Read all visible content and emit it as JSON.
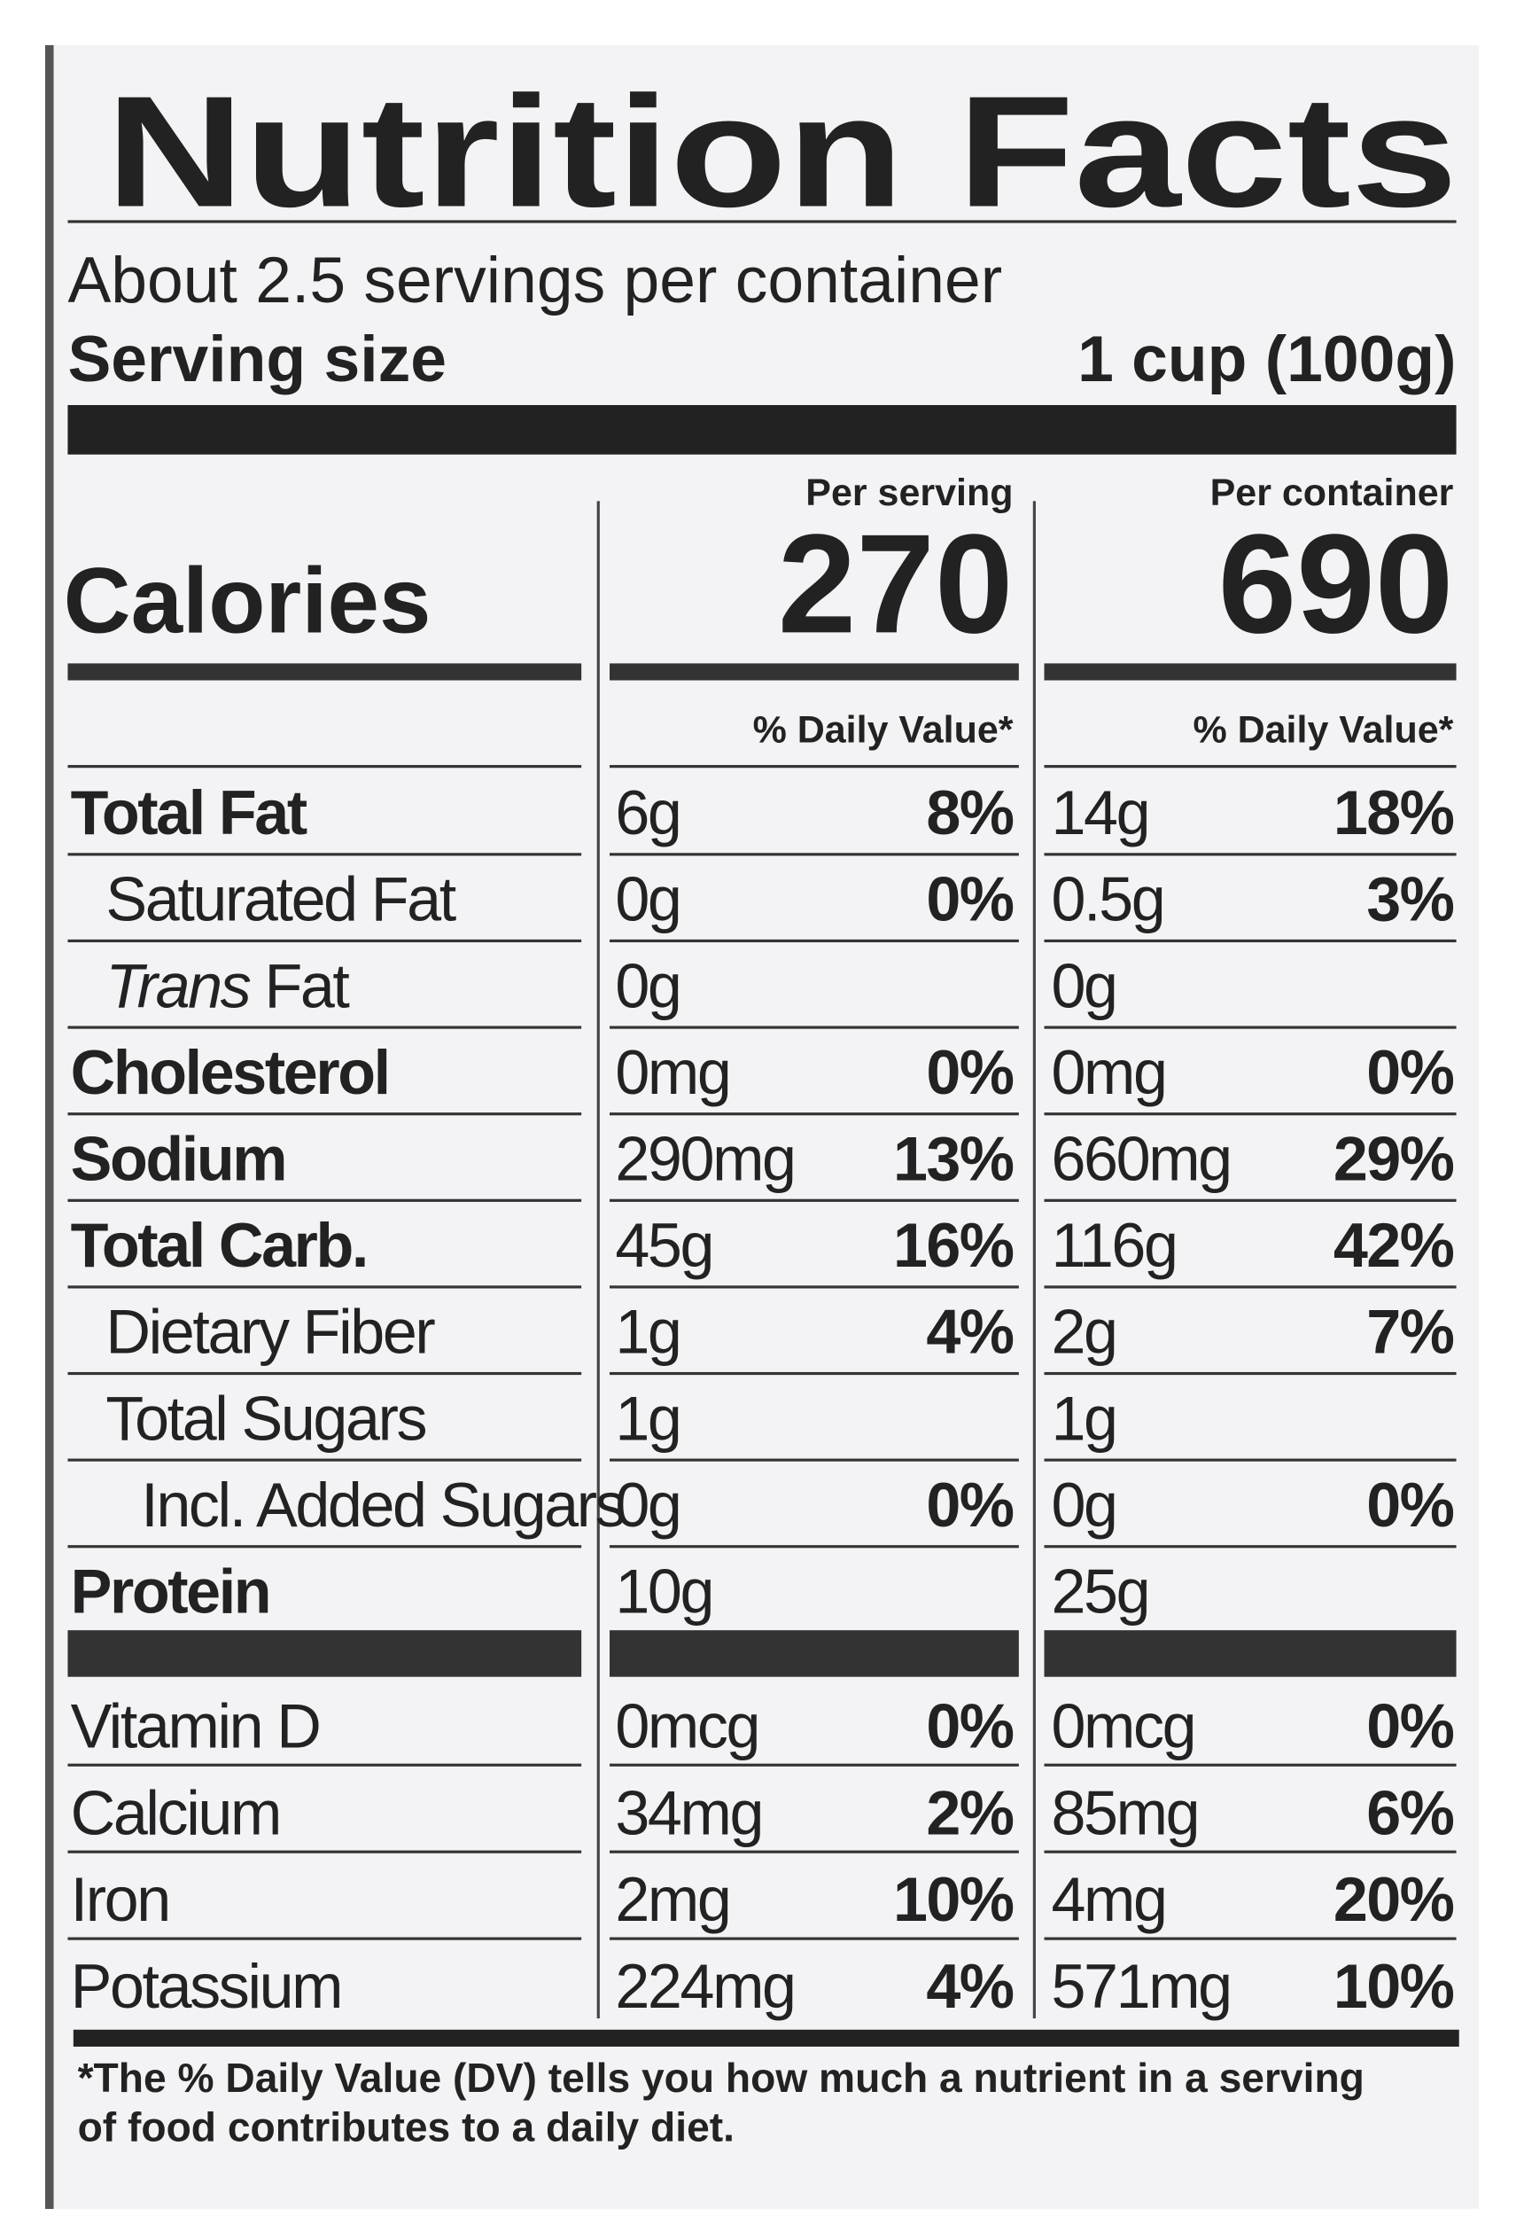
{
  "title": "Nutrition Facts",
  "servings": "About 2.5 servings per container",
  "serving_size": {
    "label": "Serving size",
    "value": "1 cup (100g)"
  },
  "calories_label": "Calories",
  "columns": [
    {
      "heading": "Per serving",
      "calories": "270",
      "dv_heading": "% Daily Value*"
    },
    {
      "heading": "Per container",
      "calories": "690",
      "dv_heading": "% Daily Value*"
    }
  ],
  "nutrients": [
    {
      "name": "Total Fat",
      "bold": true,
      "indent": 0,
      "values": [
        {
          "amount": "6g",
          "dv": "8%"
        },
        {
          "amount": "14g",
          "dv": "18%"
        }
      ]
    },
    {
      "name": "Saturated Fat",
      "bold": false,
      "indent": 1,
      "values": [
        {
          "amount": "0g",
          "dv": "0%"
        },
        {
          "amount": "0.5g",
          "dv": "3%"
        }
      ]
    },
    {
      "name_italic": "Trans",
      "name": "Fat",
      "bold": false,
      "indent": 1,
      "values": [
        {
          "amount": "0g"
        },
        {
          "amount": "0g"
        }
      ]
    },
    {
      "name": "Cholesterol",
      "bold": true,
      "indent": 0,
      "values": [
        {
          "amount": "0mg",
          "dv": "0%"
        },
        {
          "amount": "0mg",
          "dv": "0%"
        }
      ]
    },
    {
      "name": "Sodium",
      "bold": true,
      "indent": 0,
      "values": [
        {
          "amount": "290mg",
          "dv": "13%"
        },
        {
          "amount": "660mg",
          "dv": "29%"
        }
      ]
    },
    {
      "name": "Total Carb.",
      "bold": true,
      "indent": 0,
      "values": [
        {
          "amount": "45g",
          "dv": "16%"
        },
        {
          "amount": "116g",
          "dv": "42%"
        }
      ]
    },
    {
      "name": "Dietary Fiber",
      "bold": false,
      "indent": 1,
      "values": [
        {
          "amount": "1g",
          "dv": "4%"
        },
        {
          "amount": "2g",
          "dv": "7%"
        }
      ]
    },
    {
      "name": "Total Sugars",
      "bold": false,
      "indent": 1,
      "values": [
        {
          "amount": "1g"
        },
        {
          "amount": "1g"
        }
      ]
    },
    {
      "name": "Incl. Added Sugars",
      "bold": false,
      "indent": 2,
      "values": [
        {
          "amount": "0g",
          "dv": "0%"
        },
        {
          "amount": "0g",
          "dv": "0%"
        }
      ]
    },
    {
      "name": "Protein",
      "bold": true,
      "indent": 0,
      "values": [
        {
          "amount": "10g"
        },
        {
          "amount": "25g"
        }
      ]
    }
  ],
  "vitamins": [
    {
      "name": "Vitamin D",
      "values": [
        {
          "amount": "0mcg",
          "dv": "0%"
        },
        {
          "amount": "0mcg",
          "dv": "0%"
        }
      ]
    },
    {
      "name": "Calcium",
      "values": [
        {
          "amount": "34mg",
          "dv": "2%"
        },
        {
          "amount": "85mg",
          "dv": "6%"
        }
      ]
    },
    {
      "name": "Iron",
      "values": [
        {
          "amount": "2mg",
          "dv": "10%"
        },
        {
          "amount": "4mg",
          "dv": "20%"
        }
      ]
    },
    {
      "name": "Potassium",
      "values": [
        {
          "amount": "224mg",
          "dv": "4%"
        },
        {
          "amount": "571mg",
          "dv": "10%"
        }
      ]
    }
  ],
  "footnote": [
    "*The % Daily Value (DV) tells you how much a nutrient in a serving",
    "of food contributes to a daily diet."
  ]
}
